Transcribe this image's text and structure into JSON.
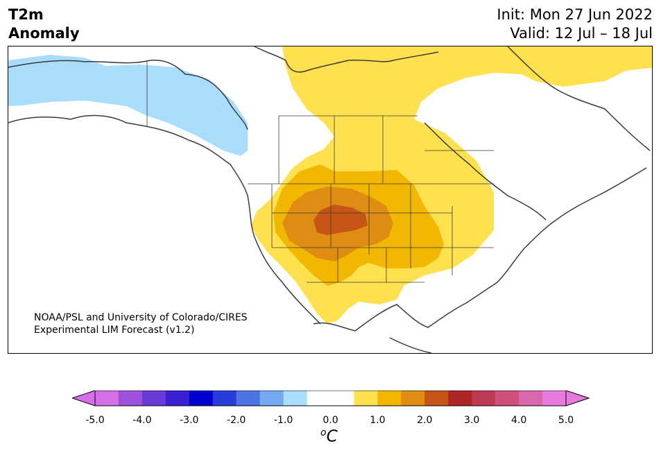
{
  "header": {
    "variable": "T2m",
    "field": "Anomaly",
    "init": "Init: Mon 27 Jun 2022",
    "valid": "Valid: 12 Jul – 18 Jul"
  },
  "credit": {
    "line1": "NOAA/PSL and University of Colorado/CIRES",
    "line2": "Experimental LIM Forecast (v1.2)"
  },
  "colorbar": {
    "unit_prefix": "o",
    "unit_main": "C",
    "tick_labels": [
      "-5.0",
      "-4.0",
      "-3.0",
      "-2.0",
      "-1.0",
      "0.0",
      "1.0",
      "2.0",
      "3.0",
      "4.0",
      "5.0"
    ],
    "colors": [
      "#d56fe8",
      "#9d52df",
      "#6a3bd9",
      "#3a20d4",
      "#0000d0",
      "#2a3ddc",
      "#4d73e5",
      "#76a8ef",
      "#aadcfb",
      "#ffffff",
      "#ffffff",
      "#ffe04f",
      "#f2b700",
      "#de8d12",
      "#c65516",
      "#b02525",
      "#be3a55",
      "#d0507c",
      "#d867ab",
      "#e77bdb"
    ],
    "over_color": "#e77bdb",
    "under_color": "#d56fe8"
  }
}
